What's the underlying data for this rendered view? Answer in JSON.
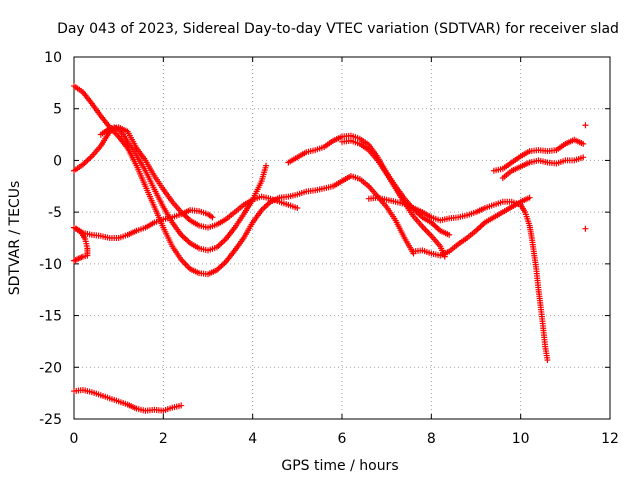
{
  "chart_data": {
    "type": "scatter",
    "title": "Day 043 of 2023, Sidereal Day-to-day VTEC variation (SDTVAR) for receiver slad",
    "xlabel": "GPS time / hours",
    "ylabel": "SDTVAR / TECUs",
    "xlim": [
      0,
      12
    ],
    "ylim": [
      -25,
      10
    ],
    "xticks": [
      0,
      2,
      4,
      6,
      8,
      10,
      12
    ],
    "yticks": [
      -25,
      -20,
      -15,
      -10,
      -5,
      0,
      5,
      10
    ],
    "xtick_labels": [
      "0",
      "2",
      "4",
      "6",
      "8",
      "10",
      "12"
    ],
    "ytick_labels": [
      "-25",
      "-20",
      "-15",
      "-10",
      "-5",
      "0",
      "5",
      "10"
    ],
    "grid": true,
    "marker": "plus",
    "color": "#ff0000",
    "series": [
      {
        "name": "track-1",
        "points": [
          [
            0,
            7.2
          ],
          [
            0.2,
            6.6
          ],
          [
            0.4,
            5.5
          ],
          [
            0.6,
            4.3
          ],
          [
            0.8,
            3.2
          ],
          [
            1.0,
            2.3
          ],
          [
            1.2,
            1.2
          ],
          [
            1.4,
            -0.5
          ],
          [
            1.6,
            -2.5
          ],
          [
            1.8,
            -4.5
          ],
          [
            2.0,
            -6.5
          ],
          [
            2.2,
            -8.3
          ],
          [
            2.4,
            -9.6
          ],
          [
            2.6,
            -10.5
          ],
          [
            2.8,
            -10.9
          ],
          [
            3.0,
            -11.0
          ],
          [
            3.2,
            -10.6
          ],
          [
            3.4,
            -9.8
          ],
          [
            3.6,
            -8.7
          ],
          [
            3.8,
            -7.5
          ],
          [
            4.0,
            -6.0
          ],
          [
            4.2,
            -4.8
          ],
          [
            4.4,
            -4.0
          ],
          [
            4.6,
            -3.6
          ],
          [
            4.8,
            -3.5
          ],
          [
            5.0,
            -3.3
          ],
          [
            5.2,
            -3.0
          ],
          [
            5.4,
            -2.9
          ],
          [
            5.6,
            -2.7
          ],
          [
            5.8,
            -2.5
          ],
          [
            6.0,
            -2.0
          ],
          [
            6.2,
            -1.5
          ],
          [
            6.4,
            -1.8
          ],
          [
            6.6,
            -2.5
          ],
          [
            6.8,
            -3.5
          ],
          [
            7.0,
            -4.5
          ],
          [
            7.2,
            -5.8
          ],
          [
            7.4,
            -7.5
          ],
          [
            7.6,
            -9.0
          ]
        ]
      },
      {
        "name": "track-2",
        "points": [
          [
            0,
            -1.0
          ],
          [
            0.2,
            -0.4
          ],
          [
            0.4,
            0.4
          ],
          [
            0.6,
            1.4
          ],
          [
            0.8,
            2.8
          ],
          [
            0.9,
            3.2
          ],
          [
            1.0,
            3.0
          ],
          [
            1.1,
            2.5
          ],
          [
            1.2,
            1.8
          ],
          [
            1.4,
            0.5
          ],
          [
            1.6,
            -1.0
          ],
          [
            1.8,
            -2.8
          ],
          [
            2.0,
            -4.5
          ],
          [
            2.2,
            -6.0
          ],
          [
            2.4,
            -7.2
          ],
          [
            2.6,
            -8.0
          ],
          [
            2.8,
            -8.5
          ],
          [
            3.0,
            -8.7
          ],
          [
            3.2,
            -8.4
          ],
          [
            3.4,
            -7.6
          ],
          [
            3.6,
            -6.5
          ],
          [
            3.8,
            -5.2
          ],
          [
            4.0,
            -3.8
          ],
          [
            4.2,
            -2.0
          ],
          [
            4.3,
            -0.5
          ]
        ]
      },
      {
        "name": "track-3",
        "points": [
          [
            0.6,
            2.5
          ],
          [
            0.8,
            3.1
          ],
          [
            1.0,
            3.2
          ],
          [
            1.2,
            2.8
          ],
          [
            1.4,
            1.2
          ],
          [
            1.6,
            0.0
          ],
          [
            1.8,
            -1.5
          ],
          [
            2.0,
            -2.8
          ],
          [
            2.2,
            -4.0
          ],
          [
            2.4,
            -5.0
          ],
          [
            2.6,
            -5.8
          ],
          [
            2.8,
            -6.3
          ],
          [
            3.0,
            -6.5
          ],
          [
            3.2,
            -6.2
          ],
          [
            3.4,
            -5.7
          ],
          [
            3.6,
            -5.0
          ],
          [
            3.8,
            -4.3
          ],
          [
            4.0,
            -3.8
          ],
          [
            4.2,
            -3.5
          ],
          [
            4.4,
            -3.7
          ],
          [
            4.6,
            -4.0
          ],
          [
            4.8,
            -4.3
          ],
          [
            5.0,
            -4.6
          ]
        ]
      },
      {
        "name": "track-4",
        "points": [
          [
            0,
            -6.5
          ],
          [
            0.2,
            -7.0
          ],
          [
            0.4,
            -7.2
          ],
          [
            0.6,
            -7.3
          ],
          [
            0.8,
            -7.5
          ],
          [
            1.0,
            -7.5
          ],
          [
            1.2,
            -7.2
          ],
          [
            1.4,
            -6.8
          ],
          [
            1.6,
            -6.5
          ],
          [
            1.8,
            -6.0
          ],
          [
            2.0,
            -5.7
          ],
          [
            2.2,
            -5.5
          ],
          [
            2.4,
            -5.2
          ],
          [
            2.6,
            -4.8
          ],
          [
            2.8,
            -4.9
          ],
          [
            3.0,
            -5.2
          ],
          [
            3.1,
            -5.5
          ]
        ]
      },
      {
        "name": "track-5",
        "points": [
          [
            0,
            -9.7
          ],
          [
            0.1,
            -9.5
          ],
          [
            0.2,
            -9.3
          ],
          [
            0.3,
            -9.2
          ],
          [
            0.3,
            -8.5
          ],
          [
            0.25,
            -7.6
          ],
          [
            0.15,
            -6.9
          ],
          [
            0.05,
            -6.6
          ]
        ]
      },
      {
        "name": "track-6",
        "points": [
          [
            4.8,
            -0.2
          ],
          [
            5.0,
            0.3
          ],
          [
            5.2,
            0.8
          ],
          [
            5.4,
            1.0
          ],
          [
            5.6,
            1.3
          ],
          [
            5.8,
            1.9
          ],
          [
            6.0,
            2.3
          ],
          [
            6.2,
            2.4
          ],
          [
            6.4,
            2.1
          ],
          [
            6.6,
            1.5
          ],
          [
            6.8,
            0.3
          ],
          [
            7.0,
            -1.2
          ],
          [
            7.2,
            -2.5
          ],
          [
            7.4,
            -3.7
          ],
          [
            7.6,
            -4.7
          ],
          [
            7.8,
            -5.5
          ],
          [
            8.0,
            -6.0
          ],
          [
            8.2,
            -6.8
          ],
          [
            8.4,
            -7.2
          ]
        ]
      },
      {
        "name": "track-7",
        "points": [
          [
            6.0,
            1.8
          ],
          [
            6.2,
            1.9
          ],
          [
            6.4,
            1.6
          ],
          [
            6.6,
            1.0
          ],
          [
            6.8,
            0.0
          ],
          [
            7.0,
            -1.3
          ],
          [
            7.2,
            -2.7
          ],
          [
            7.4,
            -4.1
          ],
          [
            7.6,
            -5.4
          ],
          [
            7.8,
            -6.4
          ],
          [
            8.0,
            -7.3
          ],
          [
            8.2,
            -8.3
          ],
          [
            8.3,
            -9.3
          ]
        ]
      },
      {
        "name": "track-8",
        "points": [
          [
            6.6,
            -3.7
          ],
          [
            6.8,
            -3.6
          ],
          [
            7.0,
            -3.8
          ],
          [
            7.2,
            -4.0
          ],
          [
            7.4,
            -4.2
          ],
          [
            7.6,
            -4.6
          ],
          [
            7.8,
            -5.0
          ],
          [
            8.0,
            -5.5
          ],
          [
            8.2,
            -5.8
          ],
          [
            8.4,
            -5.6
          ],
          [
            8.6,
            -5.5
          ],
          [
            8.8,
            -5.3
          ],
          [
            9.0,
            -5.0
          ],
          [
            9.2,
            -4.6
          ],
          [
            9.4,
            -4.3
          ],
          [
            9.6,
            -4.0
          ],
          [
            9.8,
            -4.0
          ],
          [
            10.0,
            -4.3
          ]
        ]
      },
      {
        "name": "track-9",
        "points": [
          [
            7.6,
            -8.8
          ],
          [
            7.8,
            -8.7
          ],
          [
            8.0,
            -9.0
          ],
          [
            8.2,
            -9.2
          ],
          [
            8.4,
            -8.8
          ],
          [
            8.6,
            -8.1
          ],
          [
            8.8,
            -7.5
          ],
          [
            9.0,
            -6.8
          ],
          [
            9.2,
            -6.0
          ],
          [
            9.4,
            -5.5
          ],
          [
            9.6,
            -5.0
          ],
          [
            9.8,
            -4.5
          ],
          [
            10.0,
            -4.0
          ],
          [
            10.2,
            -3.6
          ]
        ]
      },
      {
        "name": "track-10",
        "points": [
          [
            10.0,
            -4.3
          ],
          [
            10.1,
            -5.0
          ],
          [
            10.2,
            -6.3
          ],
          [
            10.25,
            -7.5
          ],
          [
            10.3,
            -9.0
          ],
          [
            10.35,
            -10.5
          ],
          [
            10.4,
            -12.5
          ],
          [
            10.45,
            -14.2
          ],
          [
            10.5,
            -16.0
          ],
          [
            10.55,
            -18.0
          ],
          [
            10.6,
            -19.3
          ]
        ]
      },
      {
        "name": "track-11",
        "points": [
          [
            9.4,
            -1.0
          ],
          [
            9.6,
            -0.8
          ],
          [
            9.8,
            -0.2
          ],
          [
            10.0,
            0.4
          ],
          [
            10.2,
            0.9
          ],
          [
            10.4,
            1.0
          ],
          [
            10.6,
            0.9
          ],
          [
            10.8,
            1.0
          ],
          [
            11.0,
            1.6
          ],
          [
            11.2,
            2.0
          ],
          [
            11.4,
            1.6
          ]
        ]
      },
      {
        "name": "track-12",
        "points": [
          [
            9.6,
            -1.7
          ],
          [
            9.8,
            -1.0
          ],
          [
            10.0,
            -0.6
          ],
          [
            10.2,
            -0.2
          ],
          [
            10.4,
            0.0
          ],
          [
            10.6,
            -0.2
          ],
          [
            10.8,
            -0.3
          ],
          [
            11.0,
            0.0
          ],
          [
            11.2,
            0.0
          ],
          [
            11.4,
            0.3
          ]
        ]
      },
      {
        "name": "track-13",
        "points": [
          [
            0,
            -22.3
          ],
          [
            0.2,
            -22.2
          ],
          [
            0.4,
            -22.4
          ],
          [
            0.6,
            -22.7
          ],
          [
            0.8,
            -23.0
          ],
          [
            1.0,
            -23.3
          ],
          [
            1.2,
            -23.6
          ],
          [
            1.4,
            -24.0
          ],
          [
            1.6,
            -24.2
          ],
          [
            1.8,
            -24.1
          ],
          [
            2.0,
            -24.2
          ],
          [
            2.2,
            -23.9
          ],
          [
            2.4,
            -23.7
          ]
        ]
      },
      {
        "name": "outliers",
        "points": [
          [
            11.45,
            3.4
          ],
          [
            11.45,
            -6.6
          ]
        ]
      }
    ]
  }
}
